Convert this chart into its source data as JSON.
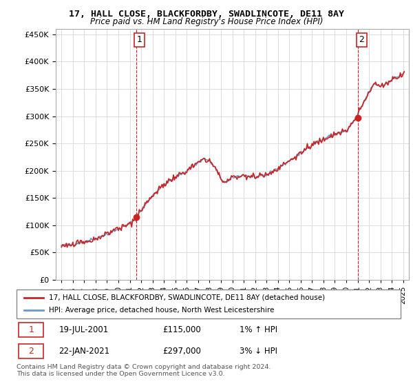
{
  "title": "17, HALL CLOSE, BLACKFORDBY, SWADLINCOTE, DE11 8AY",
  "subtitle": "Price paid vs. HM Land Registry's House Price Index (HPI)",
  "legend_line1": "17, HALL CLOSE, BLACKFORDBY, SWADLINCOTE, DE11 8AY (detached house)",
  "legend_line2": "HPI: Average price, detached house, North West Leicestershire",
  "sale1_label": "1",
  "sale1_date": "19-JUL-2001",
  "sale1_price": "£115,000",
  "sale1_hpi": "1% ↑ HPI",
  "sale2_label": "2",
  "sale2_date": "22-JAN-2021",
  "sale2_price": "£297,000",
  "sale2_hpi": "3% ↓ HPI",
  "footer": "Contains HM Land Registry data © Crown copyright and database right 2024.\nThis data is licensed under the Open Government Licence v3.0.",
  "hpi_color": "#6699cc",
  "price_color": "#cc2222",
  "sale_marker_color": "#cc2222",
  "vline_color": "#cc2222",
  "background_color": "#ffffff",
  "grid_color": "#dddddd",
  "ylim": [
    0,
    460000
  ],
  "yticks": [
    0,
    50000,
    100000,
    150000,
    200000,
    250000,
    300000,
    350000,
    400000,
    450000
  ],
  "sale1_year": 2001.55,
  "sale2_year": 2021.05,
  "sale1_value": 115000,
  "sale2_value": 297000
}
